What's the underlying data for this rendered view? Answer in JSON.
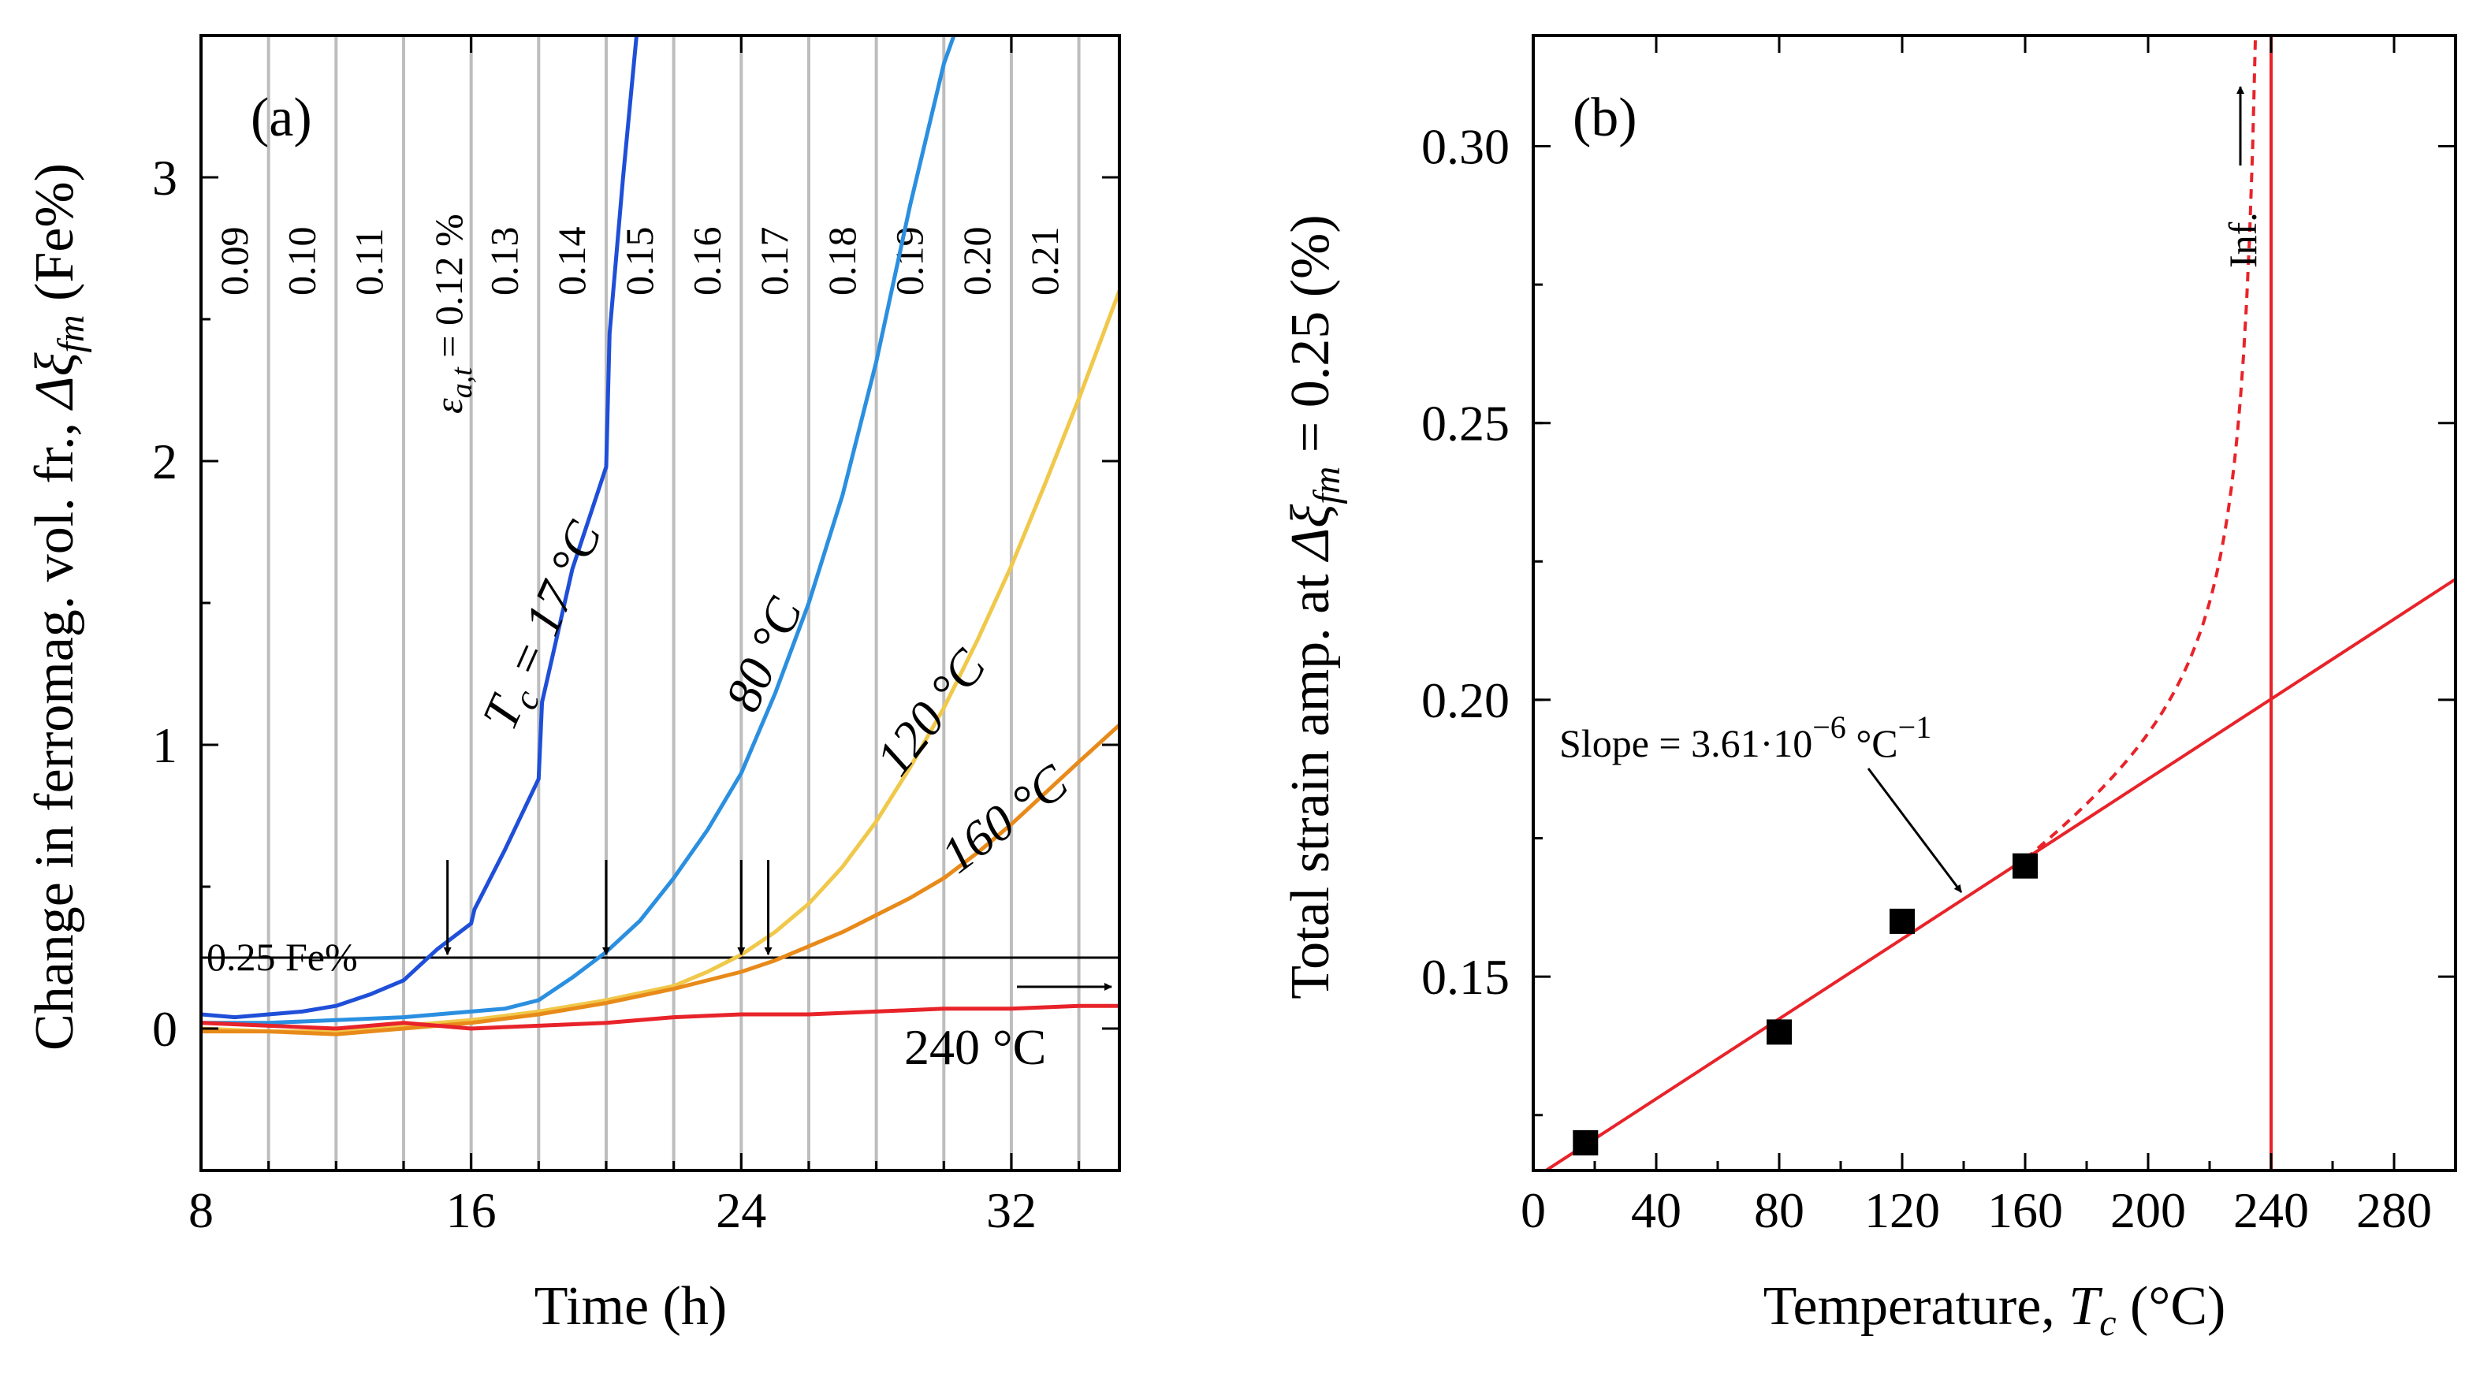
{
  "chart_data": [
    {
      "type": "line",
      "panel_label": "(a)",
      "xlabel": "Time (h)",
      "ylabel": "Change in ferromag. vol. fr., Δξfm (Fe%)",
      "ylabel_parts": {
        "main": "Change in ferromag. vol. fr., ",
        "sym": "Δξ",
        "sub": "fm",
        "unit": " (Fe%)"
      },
      "xlim": [
        8,
        35.2
      ],
      "ylim": [
        -0.5,
        3.5
      ],
      "xticks": [
        8,
        16,
        24,
        32
      ],
      "yticks": [
        0,
        1,
        2,
        3
      ],
      "threshold": {
        "value": 0.25,
        "label": "0.25 Fe%"
      },
      "strain_label": {
        "prefix": "ε",
        "sub": "a,t",
        "suffix": " = 0.12 %"
      },
      "strain_steps": [
        {
          "x_start": 8,
          "x_end": 10,
          "label": "0.09"
        },
        {
          "x_start": 10,
          "x_end": 12,
          "label": "0.10"
        },
        {
          "x_start": 12,
          "x_end": 14,
          "label": "0.11"
        },
        {
          "x_start": 14,
          "x_end": 16,
          "label": ""
        },
        {
          "x_start": 16,
          "x_end": 18,
          "label": "0.13"
        },
        {
          "x_start": 18,
          "x_end": 20,
          "label": "0.14"
        },
        {
          "x_start": 20,
          "x_end": 22,
          "label": "0.15"
        },
        {
          "x_start": 22,
          "x_end": 24,
          "label": "0.16"
        },
        {
          "x_start": 24,
          "x_end": 26,
          "label": "0.17"
        },
        {
          "x_start": 26,
          "x_end": 28,
          "label": "0.18"
        },
        {
          "x_start": 28,
          "x_end": 30,
          "label": "0.19"
        },
        {
          "x_start": 30,
          "x_end": 32,
          "label": "0.20"
        },
        {
          "x_start": 32,
          "x_end": 34,
          "label": "0.21"
        }
      ],
      "series": [
        {
          "name": "Tc = 17 °C",
          "label_prefix": "T",
          "label_sub": "c",
          "label_suffix": " = 17 °C",
          "color": "#1f4fd8",
          "x": [
            8,
            9,
            10,
            11,
            12,
            13,
            14,
            15,
            16,
            16.1,
            17,
            18,
            18.1,
            19,
            20,
            20.1,
            20.5,
            20.9
          ],
          "y": [
            0.05,
            0.04,
            0.05,
            0.06,
            0.08,
            0.12,
            0.17,
            0.28,
            0.37,
            0.42,
            0.63,
            0.88,
            1.15,
            1.62,
            1.98,
            2.45,
            3.0,
            3.5
          ]
        },
        {
          "name": "80 °C",
          "label_prefix": "",
          "label_sub": "",
          "label_suffix": "80 °C",
          "color": "#2b8fe0",
          "x": [
            8,
            10,
            12,
            14,
            15,
            16,
            17,
            18,
            19,
            20,
            21,
            22,
            23,
            24,
            25,
            26,
            27,
            28,
            29,
            30,
            30.3
          ],
          "y": [
            0.02,
            0.02,
            0.03,
            0.04,
            0.05,
            0.06,
            0.07,
            0.1,
            0.18,
            0.27,
            0.38,
            0.53,
            0.7,
            0.9,
            1.18,
            1.5,
            1.88,
            2.35,
            2.9,
            3.4,
            3.5
          ]
        },
        {
          "name": "120 °C",
          "label_prefix": "",
          "label_sub": "",
          "label_suffix": "120 °C",
          "color": "#f0c84a",
          "x": [
            8,
            10,
            12,
            14,
            16,
            18,
            20,
            22,
            23,
            24,
            25,
            26,
            27,
            28,
            29,
            30,
            31,
            32,
            33,
            34,
            35.2
          ],
          "y": [
            0.0,
            -0.01,
            -0.01,
            0.01,
            0.03,
            0.06,
            0.1,
            0.15,
            0.2,
            0.26,
            0.34,
            0.44,
            0.57,
            0.73,
            0.92,
            1.13,
            1.37,
            1.63,
            1.92,
            2.22,
            2.6
          ]
        },
        {
          "name": "160 °C",
          "label_prefix": "",
          "label_sub": "",
          "label_suffix": "160 °C",
          "color": "#e88a1a",
          "x": [
            8,
            10,
            12,
            14,
            16,
            18,
            20,
            22,
            24,
            25,
            26,
            27,
            28,
            29,
            30,
            31,
            32,
            33,
            34,
            35.2
          ],
          "y": [
            -0.01,
            -0.01,
            -0.02,
            0.0,
            0.02,
            0.05,
            0.09,
            0.14,
            0.2,
            0.24,
            0.29,
            0.34,
            0.4,
            0.46,
            0.53,
            0.62,
            0.72,
            0.83,
            0.94,
            1.07
          ]
        },
        {
          "name": "240 °C",
          "label_prefix": "",
          "label_sub": "",
          "label_suffix": "240 °C",
          "color": "#e8232a",
          "x": [
            8,
            10,
            12,
            14,
            16,
            18,
            20,
            22,
            24,
            26,
            28,
            30,
            32,
            34,
            35.2
          ],
          "y": [
            0.02,
            0.01,
            0.0,
            0.02,
            0.0,
            0.01,
            0.02,
            0.04,
            0.05,
            0.05,
            0.06,
            0.07,
            0.07,
            0.08,
            0.08
          ]
        }
      ],
      "crossing_arrows_x": [
        15.3,
        20.0,
        24.0,
        24.8
      ]
    },
    {
      "type": "scatter",
      "panel_label": "(b)",
      "xlabel": "Temperature, Tc (°C)",
      "xlabel_parts": {
        "main": "Temperature, ",
        "sym": "T",
        "sub": "c",
        "unit": " (°C)"
      },
      "ylabel": "Total strain amp. at Δξfm = 0.25 (%)",
      "ylabel_parts": {
        "main": "Total strain amp. at ",
        "sym": "Δξ",
        "sub": "fm",
        "unit": " = 0.25 (%)"
      },
      "xlim": [
        0,
        300
      ],
      "ylim": [
        0.115,
        0.32
      ],
      "xticks": [
        0,
        40,
        80,
        120,
        160,
        200,
        240,
        280
      ],
      "yticks": [
        0.15,
        0.2,
        0.25,
        0.3
      ],
      "ytick_labels": [
        "0.15",
        "0.20",
        "0.25",
        "0.30"
      ],
      "points": {
        "x": [
          17,
          80,
          120,
          160
        ],
        "y": [
          0.12,
          0.14,
          0.16,
          0.17
        ]
      },
      "fit": {
        "slope_per_C": 0.000361,
        "intercept": 0.1135,
        "label": "Slope = 3.61·10",
        "label_exp": "−6",
        "label_unit": " °C",
        "label_unit_exp": "−1"
      },
      "asymptote_x": 240,
      "asymptote_label": "Inf.",
      "colors": {
        "fit": "#e8232a",
        "points": "#000000"
      }
    }
  ]
}
